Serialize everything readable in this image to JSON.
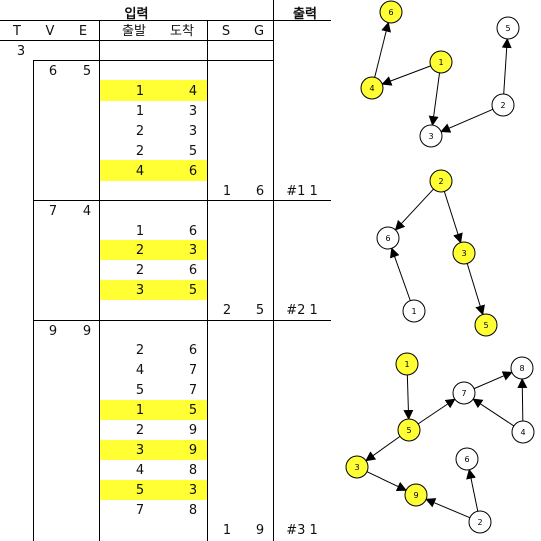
{
  "header": {
    "input_label": "입력",
    "output_label": "출력",
    "col_t": "T",
    "col_v": "V",
    "col_e": "E",
    "col_from": "출발",
    "col_to": "도착",
    "col_s": "S",
    "col_g": "G"
  },
  "t_value": "3",
  "colors": {
    "highlight": "#ffff33",
    "node_fill_default": "#ffffff",
    "stroke": "#000000"
  },
  "cases": [
    {
      "v": "6",
      "e": "5",
      "edges": [
        {
          "from": "1",
          "to": "4",
          "hl": true
        },
        {
          "from": "1",
          "to": "3",
          "hl": false
        },
        {
          "from": "2",
          "to": "3",
          "hl": false
        },
        {
          "from": "2",
          "to": "5",
          "hl": false
        },
        {
          "from": "4",
          "to": "6",
          "hl": true
        }
      ],
      "s": "1",
      "g": "6",
      "output": "#1 1"
    },
    {
      "v": "7",
      "e": "4",
      "edges": [
        {
          "from": "1",
          "to": "6",
          "hl": false
        },
        {
          "from": "2",
          "to": "3",
          "hl": true
        },
        {
          "from": "2",
          "to": "6",
          "hl": false
        },
        {
          "from": "3",
          "to": "5",
          "hl": true
        }
      ],
      "s": "2",
      "g": "5",
      "output": "#2 1"
    },
    {
      "v": "9",
      "e": "9",
      "edges": [
        {
          "from": "2",
          "to": "6",
          "hl": false
        },
        {
          "from": "4",
          "to": "7",
          "hl": false
        },
        {
          "from": "5",
          "to": "7",
          "hl": false
        },
        {
          "from": "1",
          "to": "5",
          "hl": true
        },
        {
          "from": "2",
          "to": "9",
          "hl": false
        },
        {
          "from": "3",
          "to": "9",
          "hl": true
        },
        {
          "from": "4",
          "to": "8",
          "hl": false
        },
        {
          "from": "5",
          "to": "3",
          "hl": true
        },
        {
          "from": "7",
          "to": "8",
          "hl": false
        }
      ],
      "s": "1",
      "g": "9",
      "output": "#3 1"
    }
  ],
  "graphs": [
    {
      "nodes": [
        {
          "label": "6",
          "hl": true
        },
        {
          "label": "5",
          "hl": false
        },
        {
          "label": "1",
          "hl": true
        },
        {
          "label": "4",
          "hl": true
        },
        {
          "label": "2",
          "hl": false
        },
        {
          "label": "3",
          "hl": false
        }
      ],
      "edges": [
        [
          "1",
          "4"
        ],
        [
          "1",
          "3"
        ],
        [
          "2",
          "3"
        ],
        [
          "2",
          "5"
        ],
        [
          "4",
          "6"
        ]
      ]
    },
    {
      "nodes": [
        {
          "label": "2",
          "hl": true
        },
        {
          "label": "6",
          "hl": false
        },
        {
          "label": "3",
          "hl": true
        },
        {
          "label": "1",
          "hl": false
        },
        {
          "label": "5",
          "hl": true
        }
      ],
      "edges": [
        [
          "1",
          "6"
        ],
        [
          "2",
          "3"
        ],
        [
          "2",
          "6"
        ],
        [
          "3",
          "5"
        ]
      ]
    },
    {
      "nodes": [
        {
          "label": "1",
          "hl": true
        },
        {
          "label": "8",
          "hl": false
        },
        {
          "label": "7",
          "hl": false
        },
        {
          "label": "5",
          "hl": true
        },
        {
          "label": "4",
          "hl": false
        },
        {
          "label": "3",
          "hl": true
        },
        {
          "label": "6",
          "hl": false
        },
        {
          "label": "9",
          "hl": true
        },
        {
          "label": "2",
          "hl": false
        }
      ],
      "edges": [
        [
          "2",
          "6"
        ],
        [
          "4",
          "7"
        ],
        [
          "5",
          "7"
        ],
        [
          "1",
          "5"
        ],
        [
          "2",
          "9"
        ],
        [
          "3",
          "9"
        ],
        [
          "4",
          "8"
        ],
        [
          "5",
          "3"
        ],
        [
          "7",
          "8"
        ]
      ]
    }
  ]
}
